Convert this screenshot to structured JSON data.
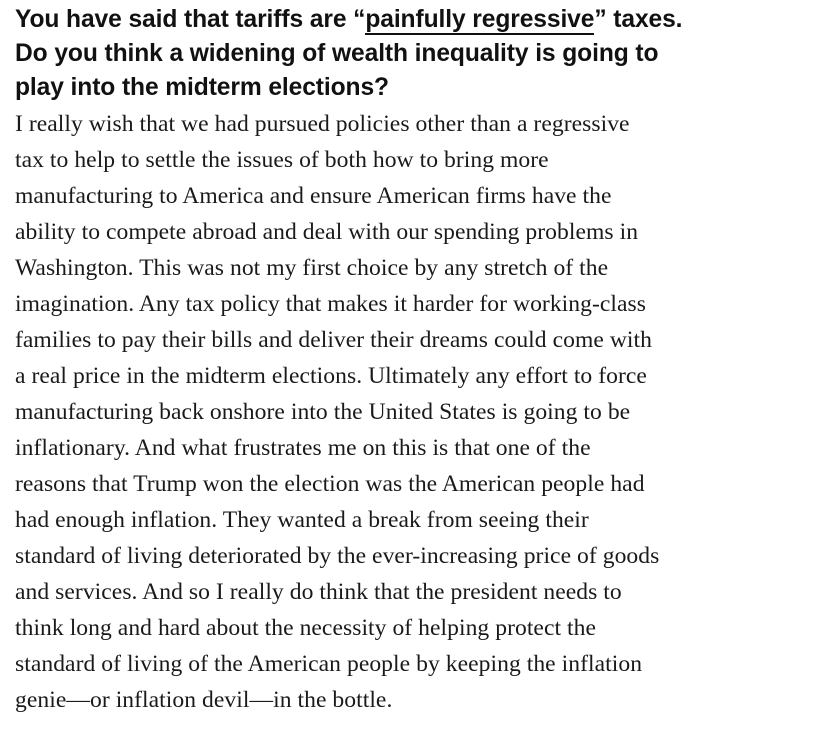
{
  "question": {
    "before_link": "You have said that tariffs are “",
    "link_text": "painfully regressive",
    "after_link_line1": "” taxes.",
    "line2": "Do you think a widening of wealth inequality is going to",
    "line3": "play into the midterm elections?"
  },
  "answer_lines": [
    "I really wish that we had pursued policies other than a regressive",
    "tax to help to settle the issues of both how to bring more",
    "manufacturing to America and ensure American firms have the",
    "ability to compete abroad and deal with our spending problems in",
    "Washington. This was not my first choice by any stretch of the",
    "imagination. Any tax policy that makes it harder for working-class",
    "families to pay their bills and deliver their dreams could come with",
    "a real price in the midterm elections. Ultimately any effort to force",
    "manufacturing back onshore into the United States is going to be",
    "inflationary. And what frustrates me on this is that one of the",
    "reasons that Trump won the election was the American people had",
    "had enough inflation. They wanted a break from seeing their",
    "standard of living deteriorated by the ever-increasing price of goods",
    "and services. And so I really do think that the president needs to",
    "think long and hard about the necessity of helping protect the",
    "standard of living of the American people by keeping the inflation",
    "genie—or inflation devil—in the bottle."
  ]
}
